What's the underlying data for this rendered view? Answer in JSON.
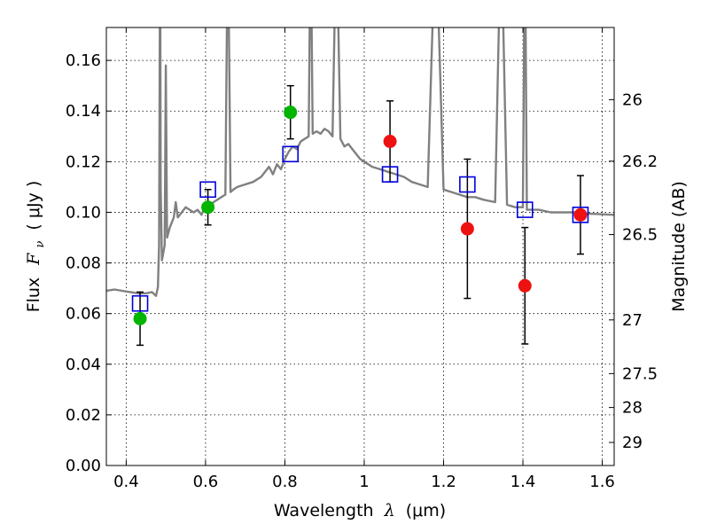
{
  "chart_data": {
    "type": "scatter",
    "xlabel_prefix": "Wavelength",
    "xlabel_symbol": "λ",
    "xlabel_unit": "(μm)",
    "ylabel_prefix": "Flux",
    "ylabel_symbol": "F",
    "ylabel_sub": "ν",
    "ylabel_unit": "( μJy )",
    "y2label": "Magnitude (AB)",
    "xlim": [
      0.35,
      1.63
    ],
    "ylim": [
      0.0,
      0.173
    ],
    "grid": true,
    "x_ticks": [
      0.4,
      0.6,
      0.8,
      1,
      1.2,
      1.4,
      1.6
    ],
    "x_tick_labels": [
      "0.4",
      "0.6",
      "0.8",
      "1",
      "1.2",
      "1.4",
      "1.6"
    ],
    "y_ticks": [
      0.0,
      0.02,
      0.04,
      0.06,
      0.08,
      0.1,
      0.12,
      0.14,
      0.16
    ],
    "y_tick_labels": [
      "0.00",
      "0.02",
      "0.04",
      "0.06",
      "0.08",
      "0.10",
      "0.12",
      "0.14",
      "0.16"
    ],
    "magnitude_ticks": [
      {
        "label": "26",
        "flux": 0.1445
      },
      {
        "label": "26.2",
        "flux": 0.1202
      },
      {
        "label": "26.5",
        "flux": 0.0912
      },
      {
        "label": "27",
        "flux": 0.0575
      },
      {
        "label": "27.5",
        "flux": 0.0363
      },
      {
        "label": "28",
        "flux": 0.0229
      },
      {
        "label": "29",
        "flux": 0.0091
      }
    ],
    "colors": {
      "model": "#808080",
      "optical": "#00b400",
      "nir": "#ee1111",
      "synthetic": "#0000dd",
      "errorbar": "#000000"
    },
    "series": [
      {
        "marker": "circle",
        "color_key": "optical",
        "points": [
          {
            "x": 0.435,
            "y": 0.058,
            "err": 0.0105
          },
          {
            "x": 0.606,
            "y": 0.102,
            "err": 0.007
          },
          {
            "x": 0.814,
            "y": 0.1395,
            "err": 0.0105
          }
        ]
      },
      {
        "marker": "circle",
        "color_key": "nir",
        "points": [
          {
            "x": 1.065,
            "y": 0.128,
            "err": 0.016
          },
          {
            "x": 1.26,
            "y": 0.0935,
            "err": 0.0275
          },
          {
            "x": 1.405,
            "y": 0.071,
            "err": 0.023
          },
          {
            "x": 1.545,
            "y": 0.099,
            "err": 0.0155
          }
        ]
      },
      {
        "marker": "open-square",
        "color_key": "synthetic",
        "points": [
          {
            "x": 0.435,
            "y": 0.064
          },
          {
            "x": 0.606,
            "y": 0.109
          },
          {
            "x": 0.814,
            "y": 0.123
          },
          {
            "x": 1.065,
            "y": 0.115
          },
          {
            "x": 1.26,
            "y": 0.111
          },
          {
            "x": 1.405,
            "y": 0.101
          },
          {
            "x": 1.545,
            "y": 0.099
          }
        ]
      }
    ],
    "model_spectrum": [
      [
        0.35,
        0.069
      ],
      [
        0.37,
        0.0695
      ],
      [
        0.39,
        0.069
      ],
      [
        0.41,
        0.0685
      ],
      [
        0.43,
        0.068
      ],
      [
        0.45,
        0.068
      ],
      [
        0.465,
        0.0685
      ],
      [
        0.475,
        0.067
      ],
      [
        0.48,
        0.0705
      ],
      [
        0.483,
        0.087
      ],
      [
        0.4855,
        0.215
      ],
      [
        0.487,
        0.11
      ],
      [
        0.49,
        0.081
      ],
      [
        0.497,
        0.087
      ],
      [
        0.5,
        0.158
      ],
      [
        0.503,
        0.09
      ],
      [
        0.51,
        0.094
      ],
      [
        0.52,
        0.098
      ],
      [
        0.525,
        0.104
      ],
      [
        0.53,
        0.098
      ],
      [
        0.54,
        0.1
      ],
      [
        0.55,
        0.102
      ],
      [
        0.56,
        0.101
      ],
      [
        0.57,
        0.1
      ],
      [
        0.58,
        0.101
      ],
      [
        0.59,
        0.099
      ],
      [
        0.6,
        0.103
      ],
      [
        0.61,
        0.102
      ],
      [
        0.62,
        0.104
      ],
      [
        0.63,
        0.105
      ],
      [
        0.64,
        0.106
      ],
      [
        0.65,
        0.107
      ],
      [
        0.6563,
        0.215
      ],
      [
        0.663,
        0.108
      ],
      [
        0.67,
        0.109
      ],
      [
        0.68,
        0.11
      ],
      [
        0.7,
        0.111
      ],
      [
        0.72,
        0.112
      ],
      [
        0.74,
        0.114
      ],
      [
        0.75,
        0.116
      ],
      [
        0.76,
        0.118
      ],
      [
        0.77,
        0.115
      ],
      [
        0.78,
        0.119
      ],
      [
        0.79,
        0.117
      ],
      [
        0.8,
        0.121
      ],
      [
        0.81,
        0.124
      ],
      [
        0.82,
        0.126
      ],
      [
        0.83,
        0.125
      ],
      [
        0.84,
        0.128
      ],
      [
        0.85,
        0.129
      ],
      [
        0.86,
        0.13
      ],
      [
        0.865,
        0.215
      ],
      [
        0.87,
        0.131
      ],
      [
        0.88,
        0.132
      ],
      [
        0.89,
        0.131
      ],
      [
        0.9,
        0.133
      ],
      [
        0.91,
        0.132
      ],
      [
        0.92,
        0.13
      ],
      [
        0.93,
        0.215
      ],
      [
        0.94,
        0.129
      ],
      [
        0.95,
        0.126
      ],
      [
        0.96,
        0.127
      ],
      [
        0.97,
        0.125
      ],
      [
        0.98,
        0.123
      ],
      [
        0.99,
        0.121
      ],
      [
        1.0,
        0.12
      ],
      [
        1.02,
        0.118
      ],
      [
        1.04,
        0.117
      ],
      [
        1.06,
        0.116
      ],
      [
        1.08,
        0.115
      ],
      [
        1.1,
        0.114
      ],
      [
        1.12,
        0.112
      ],
      [
        1.14,
        0.111
      ],
      [
        1.16,
        0.11
      ],
      [
        1.18,
        0.215
      ],
      [
        1.2,
        0.109
      ],
      [
        1.22,
        0.108
      ],
      [
        1.24,
        0.107
      ],
      [
        1.26,
        0.106
      ],
      [
        1.28,
        0.106
      ],
      [
        1.3,
        0.105
      ],
      [
        1.33,
        0.104
      ],
      [
        1.345,
        0.215
      ],
      [
        1.36,
        0.103
      ],
      [
        1.38,
        0.102
      ],
      [
        1.4,
        0.102
      ],
      [
        1.405,
        0.215
      ],
      [
        1.41,
        0.101
      ],
      [
        1.44,
        0.101
      ],
      [
        1.47,
        0.1
      ],
      [
        1.5,
        0.1
      ],
      [
        1.53,
        0.1
      ],
      [
        1.56,
        0.0995
      ],
      [
        1.59,
        0.0993
      ],
      [
        1.63,
        0.099
      ]
    ]
  }
}
